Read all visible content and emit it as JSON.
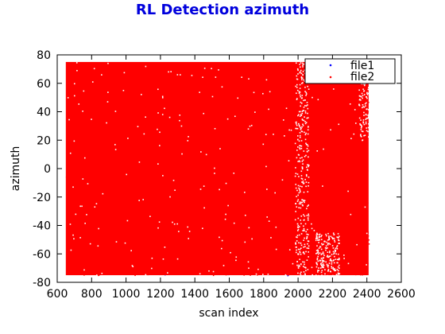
{
  "chart_data": {
    "type": "scatter",
    "title": "RL Detection azimuth",
    "xlabel": "scan index",
    "ylabel": "azimuth",
    "xlim": [
      600,
      2600
    ],
    "ylim": [
      -80,
      80
    ],
    "x_ticks": [
      600,
      800,
      1000,
      1200,
      1400,
      1600,
      1800,
      2000,
      2200,
      2400,
      2600
    ],
    "y_ticks": [
      -80,
      -60,
      -40,
      -20,
      0,
      20,
      40,
      60,
      80
    ],
    "grid": false,
    "legend_position": "top-right",
    "series": [
      {
        "name": "file1",
        "color": "#0000ff",
        "marker": "point",
        "x_range": [
          650,
          2410
        ],
        "y_range": [
          -75,
          75
        ]
      },
      {
        "name": "file2",
        "color": "#ff0000",
        "marker": "point",
        "x_range": [
          650,
          2410
        ],
        "y_range": [
          -75,
          75
        ]
      }
    ]
  }
}
